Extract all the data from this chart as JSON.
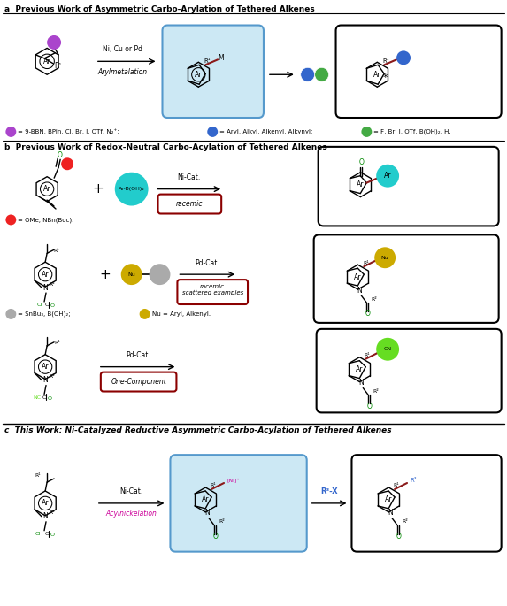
{
  "section_a_label": "a  Previous Work of Asymmetric Carbo-Arylation of Tethered Alkenes",
  "section_b_label": "b  Previous Work of Redox-Neutral Carbo-Acylation of Tethered Alkenes",
  "section_c_label": "c  This Work: Ni-Catalyzed Reductive Asymmetric Carbo-Acylation of Tethered Alkenes",
  "bg_color": "#ffffff",
  "light_blue_bg": "#cce8f4",
  "dark_blue_border": "#5599cc",
  "racemic_box_color": "#8b0000",
  "dark_red_bond": "#8b1a1a",
  "purple_color": "#aa44cc",
  "blue_color": "#3366cc",
  "green_color": "#44aa44",
  "cyan_color": "#22cccc",
  "red_color": "#ee2222",
  "gold_color": "#ccaa00",
  "lime_color": "#66dd22",
  "magenta_color": "#cc0099",
  "gray_color": "#aaaaaa",
  "black": "#000000"
}
